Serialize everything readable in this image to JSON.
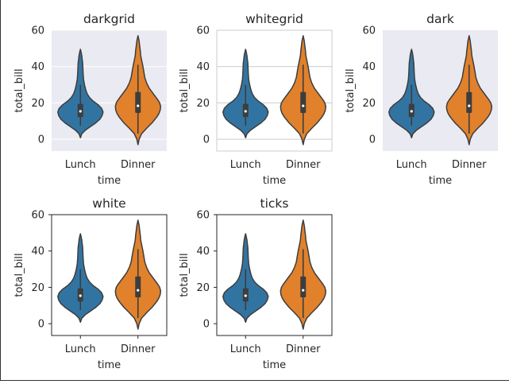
{
  "figure": {
    "background": "#ffffff"
  },
  "chart_data": [
    {
      "type": "violin",
      "title": "darkgrid",
      "style": "darkgrid",
      "xlabel": "time",
      "ylabel": "total_bill",
      "categories": [
        "Lunch",
        "Dinner"
      ],
      "ylim": [
        -6.5,
        60
      ],
      "yticks": [
        0,
        20,
        40,
        60
      ],
      "grid": true,
      "spines": false,
      "series": [
        {
          "category": "Lunch",
          "color": "#3274a1",
          "min": 0.8,
          "max": 49.5,
          "q1": 12.2,
          "median": 15.4,
          "q3": 19.5,
          "whisker_low": 7.5,
          "whisker_high": 30.0
        },
        {
          "category": "Dinner",
          "color": "#e1812c",
          "min": -3.0,
          "max": 57.0,
          "q1": 14.5,
          "median": 18.4,
          "q3": 26.0,
          "whisker_low": 3.1,
          "whisker_high": 41.0
        }
      ]
    },
    {
      "type": "violin",
      "title": "whitegrid",
      "style": "whitegrid",
      "xlabel": "time",
      "ylabel": "total_bill",
      "categories": [
        "Lunch",
        "Dinner"
      ],
      "ylim": [
        -6.5,
        60
      ],
      "yticks": [
        0,
        20,
        40,
        60
      ],
      "grid": true,
      "spines": true,
      "series": [
        {
          "category": "Lunch",
          "color": "#3274a1",
          "min": 0.8,
          "max": 49.5,
          "q1": 12.2,
          "median": 15.4,
          "q3": 19.5,
          "whisker_low": 7.5,
          "whisker_high": 30.0
        },
        {
          "category": "Dinner",
          "color": "#e1812c",
          "min": -3.0,
          "max": 57.0,
          "q1": 14.5,
          "median": 18.4,
          "q3": 26.0,
          "whisker_low": 3.1,
          "whisker_high": 41.0
        }
      ]
    },
    {
      "type": "violin",
      "title": "dark",
      "style": "dark",
      "xlabel": "time",
      "ylabel": "total_bill",
      "categories": [
        "Lunch",
        "Dinner"
      ],
      "ylim": [
        -6.5,
        60
      ],
      "yticks": [
        0,
        20,
        40,
        60
      ],
      "grid": false,
      "spines": false,
      "series": [
        {
          "category": "Lunch",
          "color": "#3274a1",
          "min": 0.8,
          "max": 49.5,
          "q1": 12.2,
          "median": 15.4,
          "q3": 19.5,
          "whisker_low": 7.5,
          "whisker_high": 30.0
        },
        {
          "category": "Dinner",
          "color": "#e1812c",
          "min": -3.0,
          "max": 57.0,
          "q1": 14.5,
          "median": 18.4,
          "q3": 26.0,
          "whisker_low": 3.1,
          "whisker_high": 41.0
        }
      ]
    },
    {
      "type": "violin",
      "title": "white",
      "style": "white",
      "xlabel": "time",
      "ylabel": "total_bill",
      "categories": [
        "Lunch",
        "Dinner"
      ],
      "ylim": [
        -6.5,
        60
      ],
      "yticks": [
        0,
        20,
        40,
        60
      ],
      "grid": false,
      "spines": true,
      "series": [
        {
          "category": "Lunch",
          "color": "#3274a1",
          "min": 0.8,
          "max": 49.5,
          "q1": 12.2,
          "median": 15.4,
          "q3": 19.5,
          "whisker_low": 7.5,
          "whisker_high": 30.0
        },
        {
          "category": "Dinner",
          "color": "#e1812c",
          "min": -3.0,
          "max": 57.0,
          "q1": 14.5,
          "median": 18.4,
          "q3": 26.0,
          "whisker_low": 3.1,
          "whisker_high": 41.0
        }
      ]
    },
    {
      "type": "violin",
      "title": "ticks",
      "style": "ticks",
      "xlabel": "time",
      "ylabel": "total_bill",
      "categories": [
        "Lunch",
        "Dinner"
      ],
      "ylim": [
        -6.5,
        60
      ],
      "yticks": [
        0,
        20,
        40,
        60
      ],
      "grid": false,
      "spines": true,
      "ticks": true,
      "series": [
        {
          "category": "Lunch",
          "color": "#3274a1",
          "min": 0.8,
          "max": 49.5,
          "q1": 12.2,
          "median": 15.4,
          "q3": 19.5,
          "whisker_low": 7.5,
          "whisker_high": 30.0
        },
        {
          "category": "Dinner",
          "color": "#e1812c",
          "min": -3.0,
          "max": 57.0,
          "q1": 14.5,
          "median": 18.4,
          "q3": 26.0,
          "whisker_low": 3.1,
          "whisker_high": 41.0
        }
      ]
    }
  ]
}
